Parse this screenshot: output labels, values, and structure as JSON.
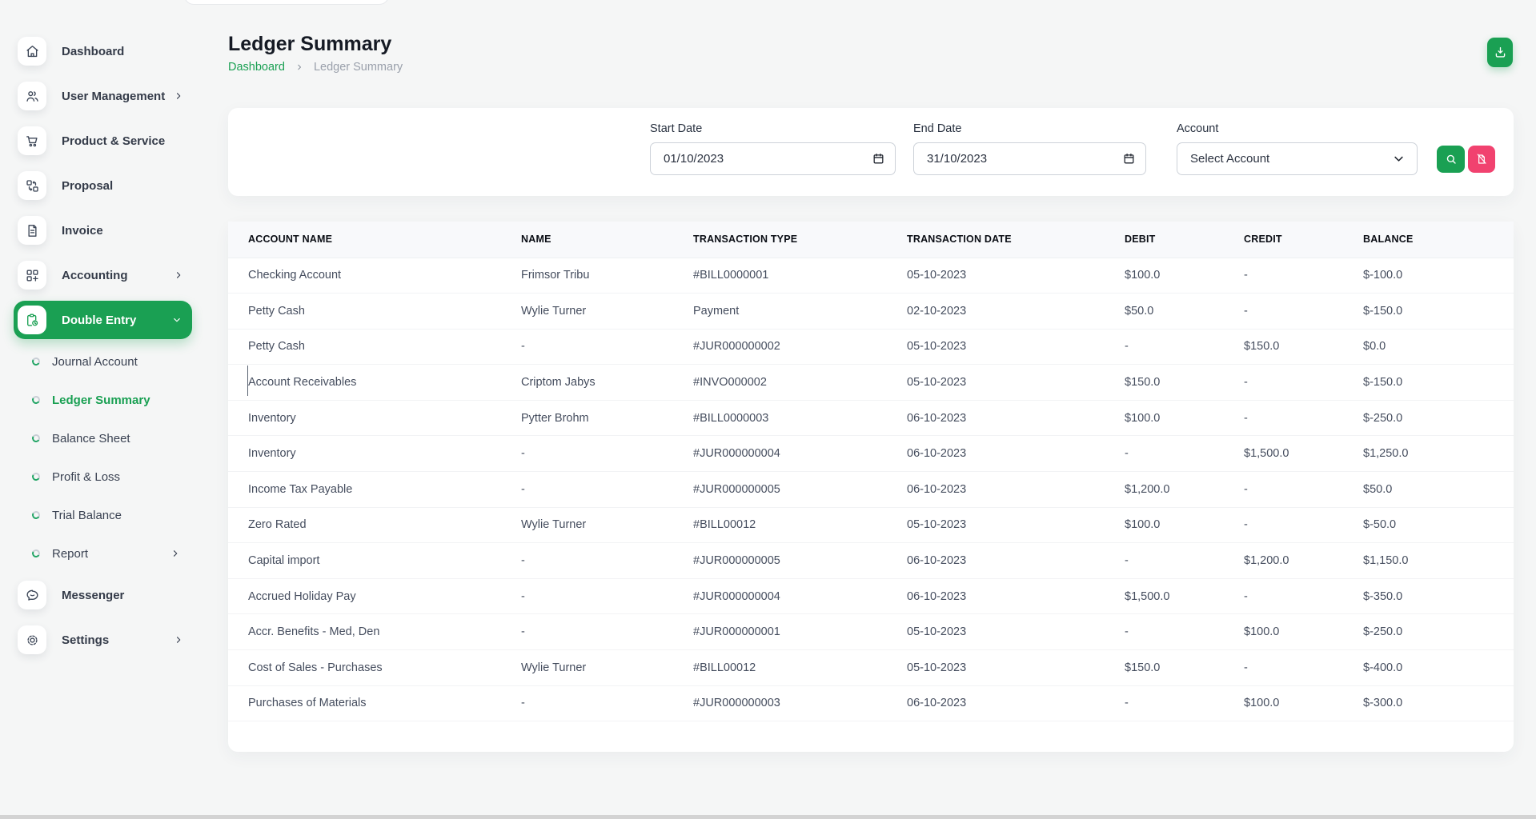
{
  "colors": {
    "accent": "#1aa053",
    "danger": "#f1426f",
    "page_bg": "#f5f6f6"
  },
  "sidebar": {
    "items": [
      {
        "label": "Dashboard",
        "icon": "home-icon",
        "chevron": null,
        "active": false
      },
      {
        "label": "User Management",
        "icon": "users-icon",
        "chevron": "right",
        "active": false
      },
      {
        "label": "Product & Service",
        "icon": "cart-icon",
        "chevron": null,
        "active": false
      },
      {
        "label": "Proposal",
        "icon": "workflow-icon",
        "chevron": null,
        "active": false
      },
      {
        "label": "Invoice",
        "icon": "invoice-icon",
        "chevron": null,
        "active": false
      },
      {
        "label": "Accounting",
        "icon": "accounting-icon",
        "chevron": "right",
        "active": false
      },
      {
        "label": "Double Entry",
        "icon": "double-entry-icon",
        "chevron": "down",
        "active": true
      }
    ],
    "sub_items": [
      {
        "label": "Journal Account",
        "chevron": null,
        "active": false
      },
      {
        "label": "Ledger Summary",
        "chevron": null,
        "active": true
      },
      {
        "label": "Balance Sheet",
        "chevron": null,
        "active": false
      },
      {
        "label": "Profit & Loss",
        "chevron": null,
        "active": false
      },
      {
        "label": "Trial Balance",
        "chevron": null,
        "active": false
      },
      {
        "label": "Report",
        "chevron": "right",
        "active": false
      }
    ],
    "bottom_items": [
      {
        "label": "Messenger",
        "icon": "chat-icon",
        "chevron": null,
        "active": false
      },
      {
        "label": "Settings",
        "icon": "gear-icon",
        "chevron": "right",
        "active": false
      }
    ]
  },
  "header": {
    "title": "Ledger Summary",
    "breadcrumb": [
      "Dashboard",
      "Ledger Summary"
    ],
    "download_icon": "download-icon"
  },
  "filters": {
    "start_date": {
      "label": "Start Date",
      "value": "01/10/2023",
      "icon": "calendar-icon"
    },
    "end_date": {
      "label": "End Date",
      "value": "31/10/2023",
      "icon": "calendar-icon"
    },
    "account": {
      "label": "Account",
      "value": "Select Account",
      "icon": "chevron-down-icon"
    },
    "search_icon": "search-icon",
    "reset_icon": "file-off-icon"
  },
  "table": {
    "columns": [
      "ACCOUNT NAME",
      "NAME",
      "TRANSACTION TYPE",
      "TRANSACTION DATE",
      "DEBIT",
      "CREDIT",
      "BALANCE"
    ],
    "rows": [
      [
        "Checking Account",
        "Frimsor Tribu",
        "#BILL0000001",
        "05-10-2023",
        "$100.0",
        "-",
        "$-100.0"
      ],
      [
        "Petty Cash",
        "Wylie Turner",
        "Payment",
        "02-10-2023",
        "$50.0",
        "-",
        "$-150.0"
      ],
      [
        "Petty Cash",
        "-",
        "#JUR000000002",
        "05-10-2023",
        "-",
        "$150.0",
        "$0.0"
      ],
      [
        "Account Receivables",
        "Criptom Jabys",
        "#INVO000002",
        "05-10-2023",
        "$150.0",
        "-",
        "$-150.0"
      ],
      [
        "Inventory",
        "Pytter Brohm",
        "#BILL0000003",
        "06-10-2023",
        "$100.0",
        "-",
        "$-250.0"
      ],
      [
        "Inventory",
        "-",
        "#JUR000000004",
        "06-10-2023",
        "-",
        "$1,500.0",
        "$1,250.0"
      ],
      [
        "Income Tax Payable",
        "-",
        "#JUR000000005",
        "06-10-2023",
        "$1,200.0",
        "-",
        "$50.0"
      ],
      [
        "Zero Rated",
        "Wylie Turner",
        "#BILL00012",
        "05-10-2023",
        "$100.0",
        "-",
        "$-50.0"
      ],
      [
        "Capital import",
        "-",
        "#JUR000000005",
        "06-10-2023",
        "-",
        "$1,200.0",
        "$1,150.0"
      ],
      [
        "Accrued Holiday Pay",
        "-",
        "#JUR000000004",
        "06-10-2023",
        "$1,500.0",
        "-",
        "$-350.0"
      ],
      [
        "Accr. Benefits - Med, Den",
        "-",
        "#JUR000000001",
        "05-10-2023",
        "-",
        "$100.0",
        "$-250.0"
      ],
      [
        "Cost of Sales - Purchases",
        "Wylie Turner",
        "#BILL00012",
        "05-10-2023",
        "$150.0",
        "-",
        "$-400.0"
      ],
      [
        "Purchases of Materials",
        "-",
        "#JUR000000003",
        "06-10-2023",
        "-",
        "$100.0",
        "$-300.0"
      ]
    ]
  }
}
